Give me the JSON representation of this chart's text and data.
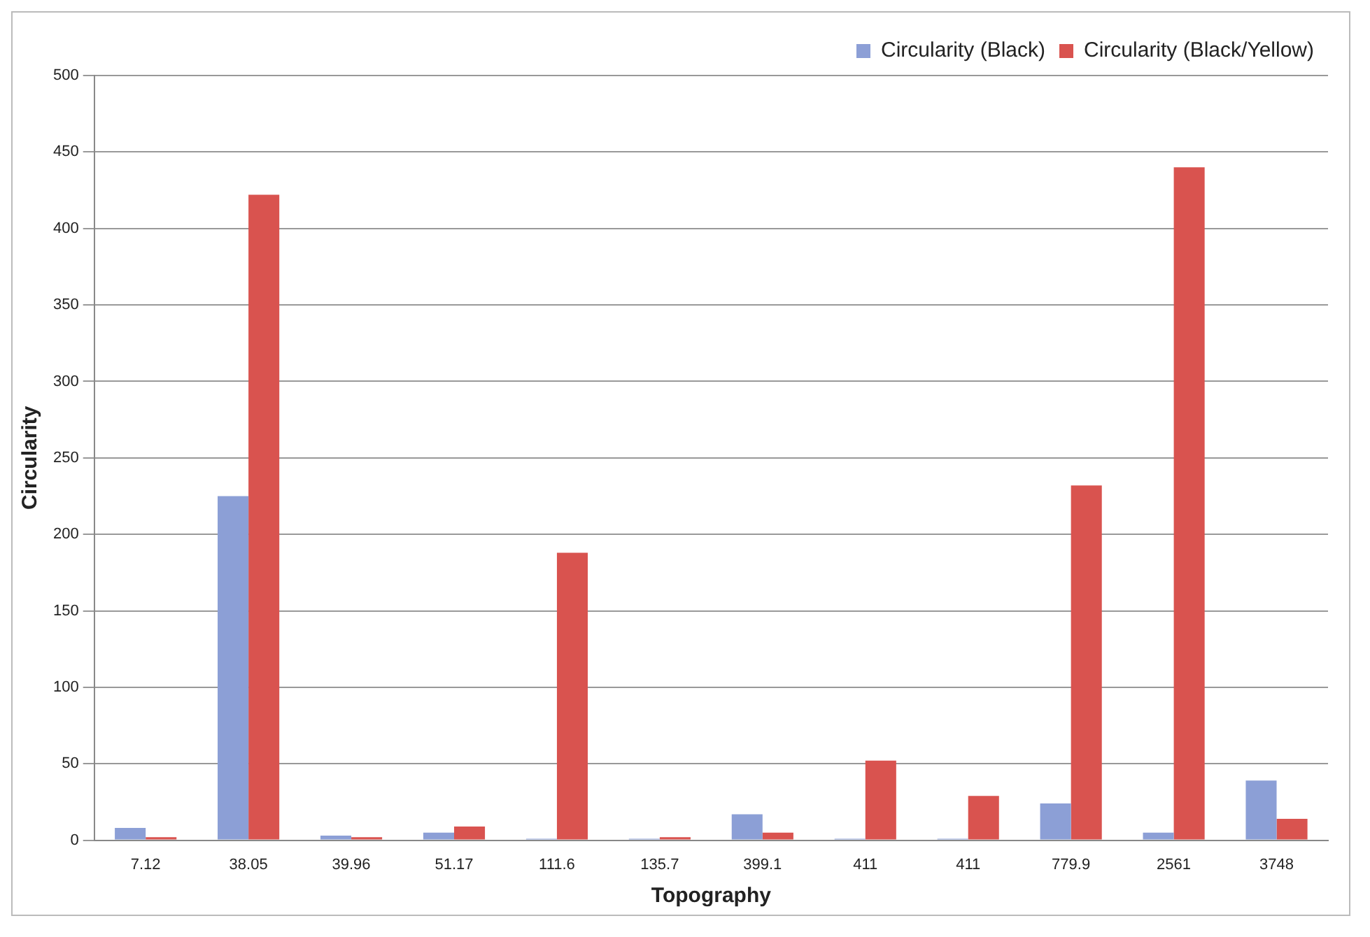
{
  "chart_data": {
    "type": "bar",
    "xlabel": "Topography",
    "ylabel": "Circularity",
    "categories": [
      "7.12",
      "38.05",
      "39.96",
      "51.17",
      "111.6",
      "135.7",
      "399.1",
      "411",
      "411",
      "779.9",
      "2561",
      "3748"
    ],
    "series": [
      {
        "name": "Circularity (Black)",
        "color": "#8c9fd6",
        "values": [
          8,
          225,
          3,
          5,
          1,
          1,
          17,
          1,
          1,
          24,
          5,
          39
        ]
      },
      {
        "name": "Circularity (Black/Yellow)",
        "color": "#d9534f",
        "values": [
          2,
          422,
          2,
          9,
          188,
          2,
          5,
          52,
          29,
          232,
          440,
          14
        ]
      }
    ],
    "ylim": [
      0,
      500
    ],
    "yticks": [
      0,
      50,
      100,
      150,
      200,
      250,
      300,
      350,
      400,
      450,
      500
    ],
    "grid": "y",
    "legend": "top right"
  }
}
